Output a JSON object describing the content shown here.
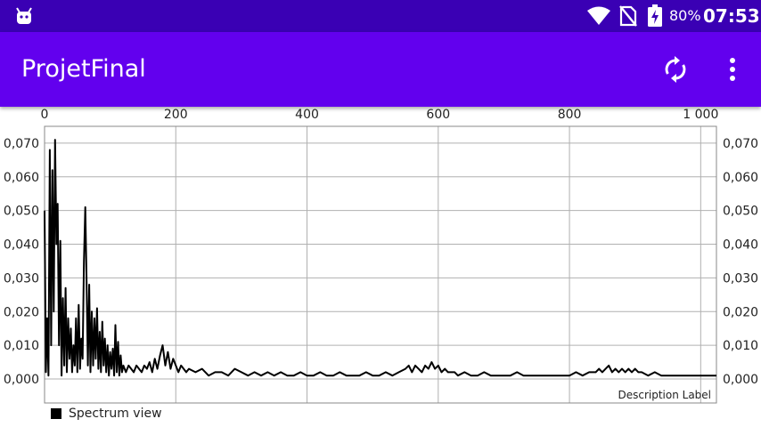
{
  "status_bar": {
    "battery_percent": "80%",
    "time": "07:53",
    "background": "#3a00b4",
    "icons": [
      "android-icon",
      "wifi-icon",
      "no-sim-icon",
      "battery-charging-icon"
    ]
  },
  "app_bar": {
    "title": "ProjetFinal",
    "background": "#6200ee",
    "actions": [
      "refresh-icon",
      "overflow-menu-icon"
    ]
  },
  "chart_data": {
    "type": "line",
    "xlim": [
      0,
      1024
    ],
    "ylim": [
      0,
      0.075
    ],
    "x_ticks": [
      0,
      200,
      400,
      600,
      800,
      1000
    ],
    "x_tick_labels": [
      "0",
      "200",
      "400",
      "600",
      "800",
      "1 000"
    ],
    "x_axis_position": "top",
    "y_ticks": [
      0,
      0.01,
      0.02,
      0.03,
      0.04,
      0.05,
      0.06,
      0.07
    ],
    "y_tick_labels": [
      "0,000",
      "0,010",
      "0,020",
      "0,030",
      "0,040",
      "0,050",
      "0,060",
      "0,070"
    ],
    "y_axes": [
      "left",
      "right"
    ],
    "grid": true,
    "description": "Description Label",
    "legend_position": "bottom-left",
    "line_color": "#000000",
    "series": [
      {
        "name": "Spectrum view",
        "x": [
          0,
          2,
          4,
          6,
          8,
          10,
          12,
          14,
          16,
          18,
          20,
          22,
          24,
          26,
          28,
          30,
          32,
          34,
          36,
          38,
          40,
          42,
          44,
          46,
          48,
          50,
          52,
          54,
          56,
          58,
          60,
          62,
          64,
          66,
          68,
          70,
          72,
          74,
          76,
          78,
          80,
          82,
          84,
          86,
          88,
          90,
          92,
          94,
          96,
          98,
          100,
          102,
          104,
          106,
          108,
          110,
          112,
          114,
          116,
          118,
          120,
          124,
          128,
          132,
          136,
          140,
          144,
          148,
          152,
          156,
          160,
          164,
          168,
          172,
          176,
          180,
          184,
          188,
          192,
          196,
          200,
          204,
          208,
          212,
          216,
          220,
          230,
          240,
          250,
          260,
          270,
          280,
          290,
          300,
          310,
          320,
          330,
          340,
          350,
          360,
          370,
          380,
          390,
          400,
          410,
          420,
          430,
          440,
          450,
          460,
          470,
          480,
          490,
          500,
          510,
          520,
          530,
          540,
          550,
          555,
          560,
          565,
          570,
          575,
          580,
          585,
          590,
          595,
          600,
          605,
          610,
          615,
          620,
          625,
          630,
          640,
          650,
          660,
          670,
          680,
          690,
          700,
          710,
          720,
          730,
          740,
          750,
          760,
          770,
          780,
          790,
          800,
          810,
          820,
          830,
          840,
          845,
          850,
          855,
          860,
          865,
          870,
          875,
          880,
          885,
          890,
          895,
          900,
          905,
          910,
          920,
          930,
          940,
          950,
          960,
          970,
          980,
          990,
          1000,
          1010,
          1020,
          1024
        ],
        "values": [
          0.05,
          0.002,
          0.018,
          0.001,
          0.068,
          0.01,
          0.062,
          0.02,
          0.071,
          0.04,
          0.052,
          0.01,
          0.041,
          0.001,
          0.024,
          0.004,
          0.027,
          0.002,
          0.018,
          0.006,
          0.015,
          0.002,
          0.01,
          0.004,
          0.018,
          0.002,
          0.022,
          0.003,
          0.012,
          0.006,
          0.035,
          0.051,
          0.03,
          0.004,
          0.028,
          0.002,
          0.02,
          0.004,
          0.018,
          0.006,
          0.021,
          0.003,
          0.014,
          0.002,
          0.017,
          0.004,
          0.012,
          0.002,
          0.01,
          0.001,
          0.008,
          0.003,
          0.009,
          0.001,
          0.016,
          0.002,
          0.011,
          0.001,
          0.007,
          0.002,
          0.004,
          0.002,
          0.004,
          0.003,
          0.002,
          0.004,
          0.003,
          0.002,
          0.004,
          0.003,
          0.005,
          0.002,
          0.006,
          0.003,
          0.007,
          0.01,
          0.004,
          0.008,
          0.003,
          0.006,
          0.004,
          0.002,
          0.004,
          0.003,
          0.002,
          0.003,
          0.002,
          0.003,
          0.001,
          0.002,
          0.002,
          0.001,
          0.003,
          0.002,
          0.001,
          0.002,
          0.001,
          0.002,
          0.001,
          0.002,
          0.001,
          0.001,
          0.002,
          0.001,
          0.001,
          0.002,
          0.001,
          0.001,
          0.002,
          0.001,
          0.001,
          0.001,
          0.002,
          0.001,
          0.001,
          0.002,
          0.001,
          0.002,
          0.003,
          0.004,
          0.002,
          0.004,
          0.003,
          0.002,
          0.004,
          0.003,
          0.005,
          0.003,
          0.004,
          0.002,
          0.003,
          0.002,
          0.002,
          0.002,
          0.001,
          0.002,
          0.001,
          0.001,
          0.002,
          0.001,
          0.001,
          0.001,
          0.001,
          0.002,
          0.001,
          0.001,
          0.001,
          0.001,
          0.001,
          0.001,
          0.001,
          0.001,
          0.002,
          0.001,
          0.002,
          0.002,
          0.003,
          0.002,
          0.003,
          0.004,
          0.002,
          0.003,
          0.002,
          0.003,
          0.002,
          0.003,
          0.002,
          0.003,
          0.002,
          0.002,
          0.001,
          0.002,
          0.001,
          0.001,
          0.001,
          0.001,
          0.001,
          0.001,
          0.001,
          0.001,
          0.001,
          0.001
        ]
      }
    ]
  }
}
